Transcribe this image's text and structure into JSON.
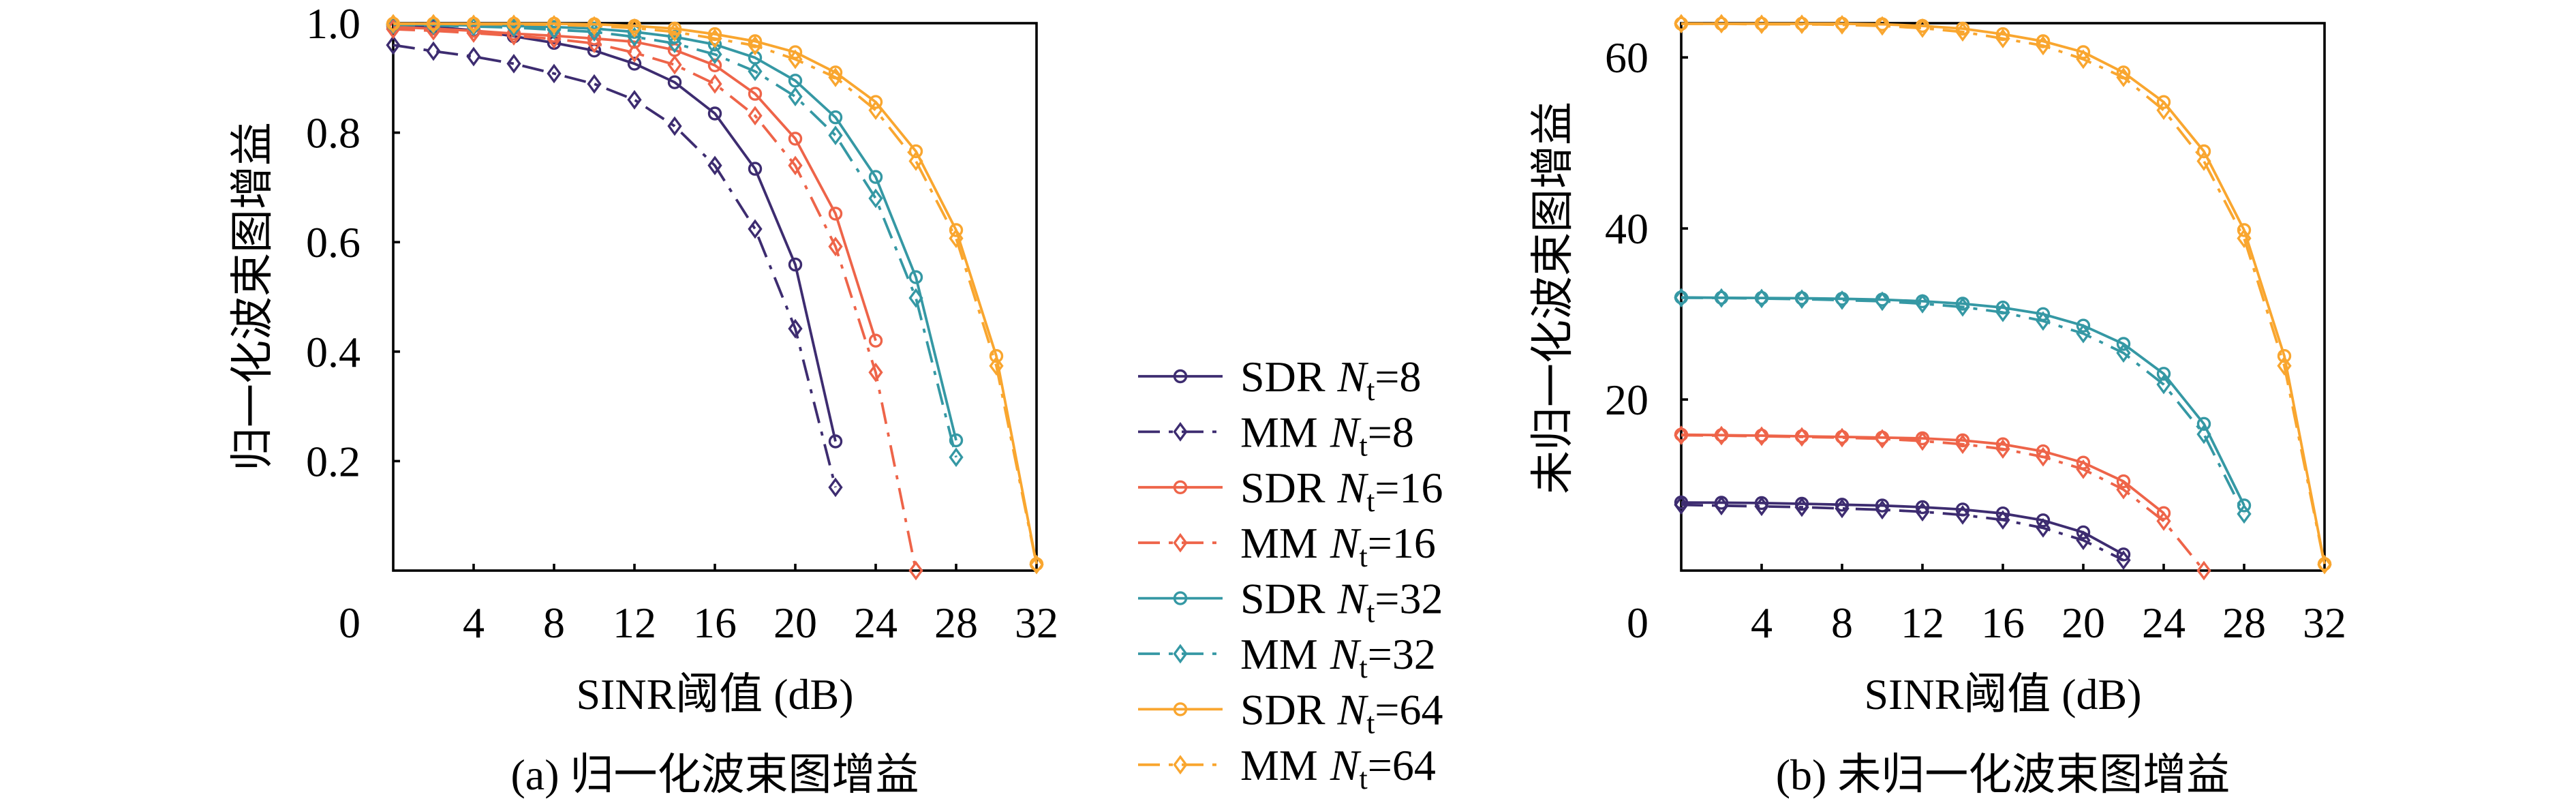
{
  "legend": {
    "placement": "center, between panels",
    "symbol": "N",
    "subscript": "t",
    "equals": "=",
    "entries": [
      {
        "method": "SDR",
        "nt": "8"
      },
      {
        "method": "MM",
        "nt": "8"
      },
      {
        "method": "SDR",
        "nt": "16"
      },
      {
        "method": "MM",
        "nt": "16"
      },
      {
        "method": "SDR",
        "nt": "32"
      },
      {
        "method": "MM",
        "nt": "32"
      },
      {
        "method": "SDR",
        "nt": "64"
      },
      {
        "method": "MM",
        "nt": "64"
      }
    ]
  },
  "chart_data": [
    {
      "type": "line",
      "caption": "(a) 归一化波束图增益",
      "title": "",
      "xlabel": "SINR阈值 (dB)",
      "ylabel": "归一化波束图增益",
      "xlim": [
        0,
        32
      ],
      "ylim": [
        0,
        1.0
      ],
      "xticks": [
        4,
        8,
        12,
        16,
        20,
        24,
        28,
        32
      ],
      "xticklabels": [
        "4",
        "8",
        "12",
        "16",
        "20",
        "24",
        "28",
        "32"
      ],
      "yticks": [
        0.2,
        0.4,
        0.6,
        0.8,
        1.0
      ],
      "yticklabels": [
        "0.2",
        "0.4",
        "0.6",
        "0.8",
        "1.0"
      ],
      "origin_label": "0",
      "grid": false,
      "legend": "shared legend between panels",
      "series": [
        {
          "name": "SDR Nt=8",
          "method": "SDR",
          "nt": 8,
          "color": "#3d2c70",
          "line_style": "solid",
          "marker": "circle",
          "x": [
            0,
            2,
            4,
            6,
            8,
            10,
            12,
            14,
            16,
            18,
            20,
            22
          ],
          "y": [
            0.995,
            0.993,
            0.987,
            0.976,
            0.964,
            0.95,
            0.926,
            0.892,
            0.835,
            0.734,
            0.559,
            0.236
          ]
        },
        {
          "name": "MM Nt=8",
          "method": "MM",
          "nt": 8,
          "color": "#3d2c70",
          "line_style": "dashdot",
          "marker": "diamond",
          "x": [
            0,
            2,
            4,
            6,
            8,
            10,
            12,
            14,
            16,
            18,
            20,
            22
          ],
          "y": [
            0.96,
            0.949,
            0.939,
            0.926,
            0.908,
            0.889,
            0.86,
            0.812,
            0.74,
            0.624,
            0.442,
            0.152
          ]
        },
        {
          "name": "SDR Nt=16",
          "method": "SDR",
          "nt": 16,
          "color": "#ee6449",
          "line_style": "solid",
          "marker": "circle",
          "x": [
            0,
            2,
            4,
            6,
            8,
            10,
            12,
            14,
            16,
            18,
            20,
            22,
            24
          ],
          "y": [
            0.993,
            0.99,
            0.986,
            0.981,
            0.977,
            0.972,
            0.966,
            0.951,
            0.923,
            0.871,
            0.789,
            0.652,
            0.42
          ]
        },
        {
          "name": "MM Nt=16",
          "method": "MM",
          "nt": 16,
          "color": "#ee6449",
          "line_style": "dashdot",
          "marker": "diamond",
          "x": [
            0,
            2,
            4,
            6,
            8,
            10,
            12,
            14,
            16,
            18,
            20,
            22,
            24,
            26
          ],
          "y": [
            0.989,
            0.986,
            0.982,
            0.977,
            0.971,
            0.963,
            0.946,
            0.924,
            0.889,
            0.831,
            0.74,
            0.592,
            0.362,
            0.0
          ]
        },
        {
          "name": "SDR Nt=32",
          "method": "SDR",
          "nt": 32,
          "color": "#3598a4",
          "line_style": "solid",
          "marker": "circle",
          "x": [
            0,
            2,
            4,
            6,
            8,
            10,
            12,
            14,
            16,
            18,
            20,
            22,
            24,
            26,
            28
          ],
          "y": [
            0.998,
            0.997,
            0.996,
            0.995,
            0.993,
            0.99,
            0.984,
            0.975,
            0.961,
            0.937,
            0.895,
            0.828,
            0.719,
            0.536,
            0.238
          ]
        },
        {
          "name": "MM Nt=32",
          "method": "MM",
          "nt": 32,
          "color": "#3598a4",
          "line_style": "dashdot",
          "marker": "diamond",
          "x": [
            0,
            2,
            4,
            6,
            8,
            10,
            12,
            14,
            16,
            18,
            20,
            22,
            24,
            26,
            28
          ],
          "y": [
            0.997,
            0.996,
            0.994,
            0.992,
            0.988,
            0.984,
            0.975,
            0.963,
            0.943,
            0.912,
            0.866,
            0.795,
            0.68,
            0.498,
            0.207
          ]
        },
        {
          "name": "SDR Nt=64",
          "method": "SDR",
          "nt": 64,
          "color": "#f9a62f",
          "line_style": "solid",
          "marker": "circle",
          "x": [
            0,
            2,
            4,
            6,
            8,
            10,
            12,
            14,
            16,
            18,
            20,
            22,
            24,
            26,
            28,
            30,
            32
          ],
          "y": [
            0.999,
            0.999,
            0.999,
            0.999,
            0.999,
            0.998,
            0.995,
            0.99,
            0.98,
            0.967,
            0.947,
            0.91,
            0.856,
            0.766,
            0.622,
            0.392,
            0.012
          ]
        },
        {
          "name": "MM Nt=64",
          "method": "MM",
          "nt": 64,
          "color": "#f9a62f",
          "line_style": "dashdot",
          "marker": "diamond",
          "x": [
            0,
            2,
            4,
            6,
            8,
            10,
            12,
            14,
            16,
            18,
            20,
            22,
            24,
            26,
            28,
            30,
            32
          ],
          "y": [
            0.999,
            0.999,
            0.998,
            0.998,
            0.997,
            0.995,
            0.991,
            0.984,
            0.972,
            0.959,
            0.934,
            0.901,
            0.841,
            0.748,
            0.607,
            0.374,
            0.011
          ]
        }
      ]
    },
    {
      "type": "line",
      "caption": "(b) 未归一化波束图增益",
      "title": "",
      "xlabel": "SINR阈值 (dB)",
      "ylabel": "未归一化波束图增益",
      "xlim": [
        0,
        32
      ],
      "ylim": [
        0,
        64
      ],
      "xticks": [
        4,
        8,
        12,
        16,
        20,
        24,
        28,
        32
      ],
      "xticklabels": [
        "4",
        "8",
        "12",
        "16",
        "20",
        "24",
        "28",
        "32"
      ],
      "yticks": [
        20,
        40,
        60
      ],
      "yticklabels": [
        "20",
        "40",
        "60"
      ],
      "origin_label": "0",
      "grid": false,
      "legend": "shared legend between panels",
      "series": [
        {
          "name": "SDR Nt=8",
          "method": "SDR",
          "nt": 8,
          "color": "#3d2c70",
          "line_style": "solid",
          "marker": "circle",
          "x": [
            0,
            2,
            4,
            6,
            8,
            10,
            12,
            14,
            16,
            18,
            20,
            22
          ],
          "y": [
            7.96,
            7.94,
            7.9,
            7.81,
            7.71,
            7.6,
            7.41,
            7.14,
            6.68,
            5.87,
            4.47,
            1.89
          ]
        },
        {
          "name": "MM Nt=8",
          "method": "MM",
          "nt": 8,
          "color": "#3d2c70",
          "line_style": "dashdot",
          "marker": "diamond",
          "x": [
            0,
            2,
            4,
            6,
            8,
            10,
            12,
            14,
            16,
            18,
            20,
            22
          ],
          "y": [
            7.68,
            7.59,
            7.51,
            7.41,
            7.26,
            7.11,
            6.88,
            6.5,
            5.92,
            4.99,
            3.54,
            1.22
          ]
        },
        {
          "name": "SDR Nt=16",
          "method": "SDR",
          "nt": 16,
          "color": "#ee6449",
          "line_style": "solid",
          "marker": "circle",
          "x": [
            0,
            2,
            4,
            6,
            8,
            10,
            12,
            14,
            16,
            18,
            20,
            22,
            24
          ],
          "y": [
            15.89,
            15.84,
            15.78,
            15.7,
            15.63,
            15.55,
            15.46,
            15.22,
            14.77,
            13.94,
            12.62,
            10.43,
            6.72
          ]
        },
        {
          "name": "MM Nt=16",
          "method": "MM",
          "nt": 16,
          "color": "#ee6449",
          "line_style": "dashdot",
          "marker": "diamond",
          "x": [
            0,
            2,
            4,
            6,
            8,
            10,
            12,
            14,
            16,
            18,
            20,
            22,
            24,
            26
          ],
          "y": [
            15.82,
            15.78,
            15.71,
            15.63,
            15.54,
            15.41,
            15.14,
            14.78,
            14.22,
            13.3,
            11.84,
            9.47,
            5.79,
            0.0
          ]
        },
        {
          "name": "SDR Nt=32",
          "method": "SDR",
          "nt": 32,
          "color": "#3598a4",
          "line_style": "solid",
          "marker": "circle",
          "x": [
            0,
            2,
            4,
            6,
            8,
            10,
            12,
            14,
            16,
            18,
            20,
            22,
            24,
            26,
            28
          ],
          "y": [
            31.94,
            31.9,
            31.87,
            31.84,
            31.78,
            31.68,
            31.49,
            31.2,
            30.75,
            29.98,
            28.64,
            26.5,
            23.01,
            17.15,
            7.62
          ]
        },
        {
          "name": "MM Nt=32",
          "method": "MM",
          "nt": 32,
          "color": "#3598a4",
          "line_style": "dashdot",
          "marker": "diamond",
          "x": [
            0,
            2,
            4,
            6,
            8,
            10,
            12,
            14,
            16,
            18,
            20,
            22,
            24,
            26,
            28
          ],
          "y": [
            31.9,
            31.87,
            31.81,
            31.74,
            31.62,
            31.49,
            31.2,
            30.82,
            30.18,
            29.18,
            27.71,
            25.44,
            21.76,
            15.94,
            6.62
          ]
        },
        {
          "name": "SDR Nt=64",
          "method": "SDR",
          "nt": 64,
          "color": "#f9a62f",
          "line_style": "solid",
          "marker": "circle",
          "x": [
            0,
            2,
            4,
            6,
            8,
            10,
            12,
            14,
            16,
            18,
            20,
            22,
            24,
            26,
            28,
            30,
            32
          ],
          "y": [
            63.94,
            63.94,
            63.94,
            63.94,
            63.94,
            63.87,
            63.68,
            63.36,
            62.72,
            61.89,
            60.61,
            58.24,
            54.78,
            49.02,
            39.81,
            25.09,
            0.77
          ]
        },
        {
          "name": "MM Nt=64",
          "method": "MM",
          "nt": 64,
          "color": "#f9a62f",
          "line_style": "dashdot",
          "marker": "diamond",
          "x": [
            0,
            2,
            4,
            6,
            8,
            10,
            12,
            14,
            16,
            18,
            20,
            22,
            24,
            26,
            28,
            30,
            32
          ],
          "y": [
            63.94,
            63.94,
            63.87,
            63.87,
            63.81,
            63.68,
            63.42,
            62.98,
            62.21,
            61.38,
            59.78,
            57.66,
            53.82,
            47.87,
            38.85,
            23.94,
            0.7
          ]
        }
      ]
    }
  ]
}
